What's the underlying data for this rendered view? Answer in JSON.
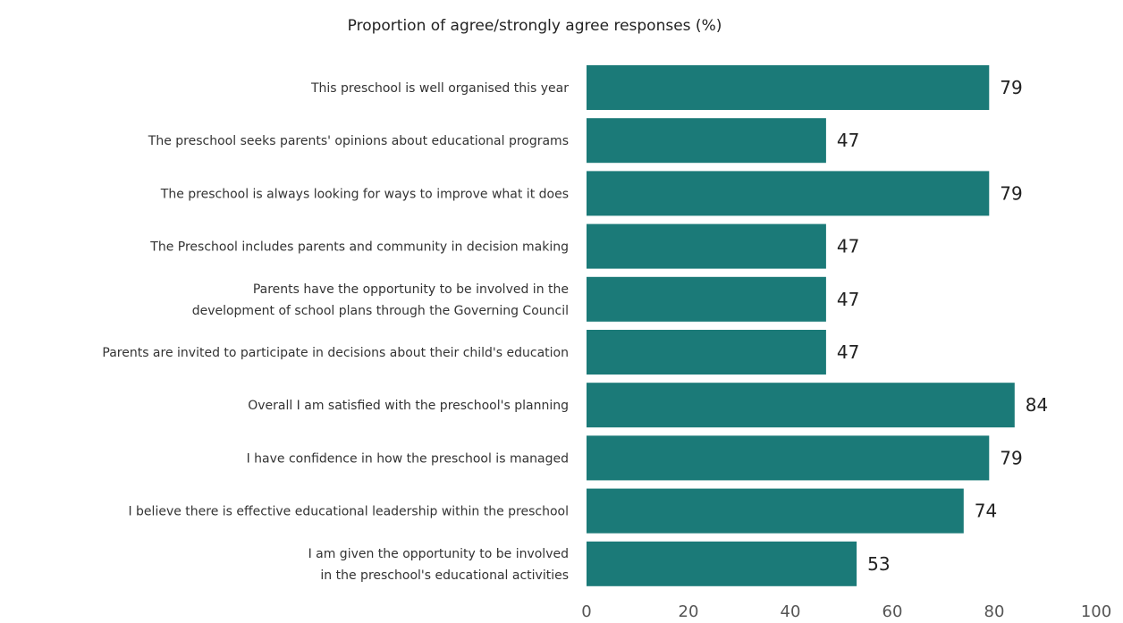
{
  "chart_data": {
    "type": "bar",
    "orientation": "horizontal",
    "title": "Proportion of agree/strongly agree responses (%)",
    "xlabel": "",
    "ylabel": "",
    "xlim": [
      0,
      100
    ],
    "ticks": [
      "0",
      "20",
      "40",
      "60",
      "80",
      "100"
    ],
    "grid": false,
    "bar_color": "#1b7a78",
    "categories": [
      [
        "This preschool is well organised this year"
      ],
      [
        "The preschool seeks parents' opinions about educational programs"
      ],
      [
        "The preschool is always looking for ways to improve what it does"
      ],
      [
        "The Preschool includes parents and community in decision making"
      ],
      [
        "Parents have the opportunity to be involved in the",
        "development of school plans through the Governing Council"
      ],
      [
        "Parents are invited to participate in decisions about their child's education"
      ],
      [
        "Overall I am satisfied with the preschool's planning"
      ],
      [
        "I have confidence in how the preschool is managed"
      ],
      [
        "I believe there is effective educational leadership within the preschool"
      ],
      [
        "I am given the opportunity to be involved",
        "in the preschool's educational activities"
      ]
    ],
    "values": [
      79,
      47,
      79,
      47,
      47,
      47,
      84,
      79,
      74,
      53
    ]
  }
}
